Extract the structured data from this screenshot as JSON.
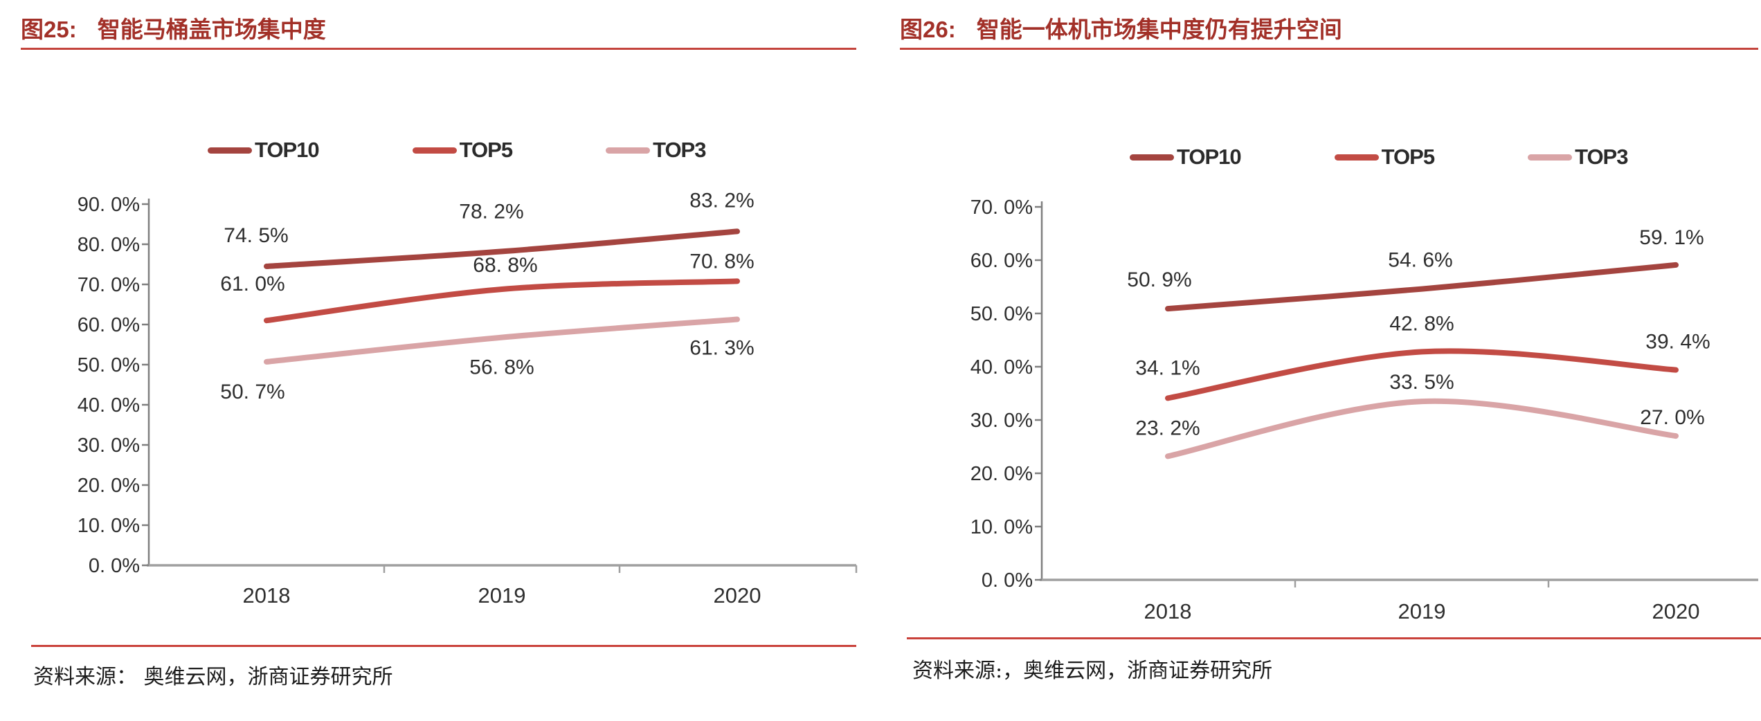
{
  "figures": [
    {
      "title_prefix": "图25:",
      "title": "智能马桶盖市场集中度",
      "source": "资料来源： 奥维云网，浙商证券研究所"
    },
    {
      "title_prefix": "图26:",
      "title": "智能一体机市场集中度仍有提升空间",
      "source": "资料来源:，奥维云网，浙商证券研究所"
    }
  ],
  "colors": {
    "title_red": "#A23028",
    "rule_red": "#C4443C",
    "top10": "#A4443F",
    "top5": "#C24B44",
    "top3": "#D9A4A6",
    "axis_gray": "#9F9F9F"
  },
  "chart_data": [
    {
      "type": "line",
      "title": "智能马桶盖市场集中度",
      "categories": [
        "2018",
        "2019",
        "2020"
      ],
      "series": [
        {
          "name": "TOP10",
          "color": "#A4443F",
          "values": [
            74.5,
            78.2,
            83.2
          ],
          "point_labels": [
            "74. 5%",
            "78. 2%",
            "83. 2%"
          ]
        },
        {
          "name": "TOP5",
          "color": "#C24B44",
          "values": [
            61.0,
            68.8,
            70.8
          ],
          "point_labels": [
            "61. 0%",
            "68. 8%",
            "70. 8%"
          ]
        },
        {
          "name": "TOP3",
          "color": "#D9A4A6",
          "values": [
            50.7,
            56.8,
            61.3
          ],
          "point_labels": [
            "50. 7%",
            "56. 8%",
            "61. 3%"
          ]
        }
      ],
      "ylim": [
        0,
        90
      ],
      "ytick_step": 10,
      "ytick_labels": [
        "0. 0%",
        "10. 0%",
        "20. 0%",
        "30. 0%",
        "40. 0%",
        "50. 0%",
        "60. 0%",
        "70. 0%",
        "80. 0%",
        "90. 0%"
      ],
      "grid": false,
      "legend_position": "top"
    },
    {
      "type": "line",
      "title": "智能一体机市场集中度仍有提升空间",
      "categories": [
        "2018",
        "2019",
        "2020"
      ],
      "series": [
        {
          "name": "TOP10",
          "color": "#A4443F",
          "values": [
            50.9,
            54.6,
            59.1
          ],
          "point_labels": [
            "50. 9%",
            "54. 6%",
            "59. 1%"
          ]
        },
        {
          "name": "TOP5",
          "color": "#C24B44",
          "values": [
            34.1,
            42.8,
            39.4
          ],
          "point_labels": [
            "34. 1%",
            "42. 8%",
            "39. 4%"
          ]
        },
        {
          "name": "TOP3",
          "color": "#D9A4A6",
          "values": [
            23.2,
            33.5,
            27.0
          ],
          "point_labels": [
            "23. 2%",
            "33. 5%",
            "27. 0%"
          ]
        }
      ],
      "ylim": [
        0,
        70
      ],
      "ytick_step": 10,
      "ytick_labels": [
        "0. 0%",
        "10. 0%",
        "20. 0%",
        "30. 0%",
        "40. 0%",
        "50. 0%",
        "60. 0%",
        "70. 0%"
      ],
      "grid": false,
      "legend_position": "top"
    }
  ]
}
